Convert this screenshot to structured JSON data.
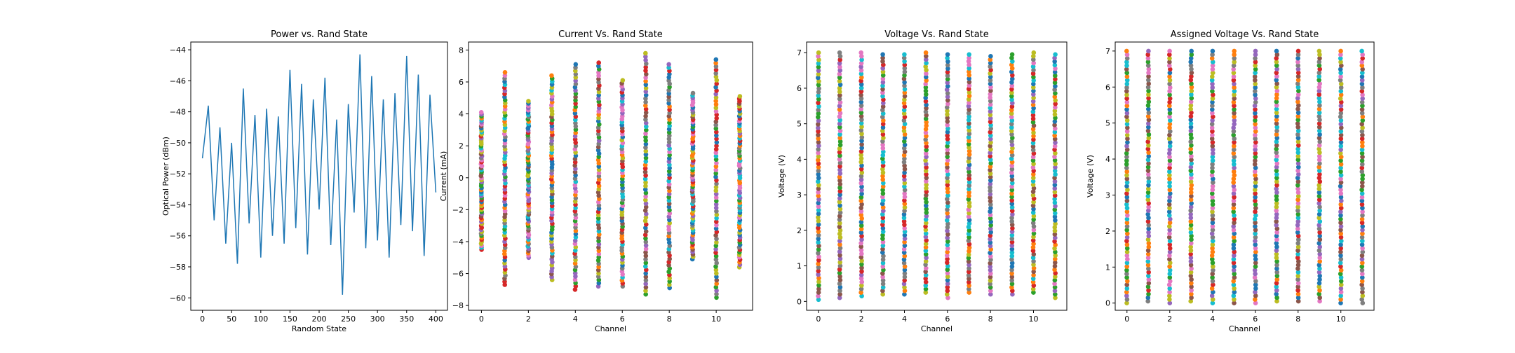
{
  "chart_data": [
    {
      "type": "line",
      "title": "Power vs. Rand State",
      "xlabel": "Random State",
      "ylabel": "Optical Power (dBm)",
      "xlim": [
        -20,
        420
      ],
      "ylim": [
        -60.8,
        -43.5
      ],
      "xticks": [
        0,
        50,
        100,
        150,
        200,
        250,
        300,
        350,
        400
      ],
      "yticks": [
        -60,
        -58,
        -56,
        -54,
        -52,
        -50,
        -48,
        -46,
        -44
      ],
      "series": [
        {
          "color": "#1f77b4",
          "x": [
            0,
            10,
            20,
            30,
            40,
            50,
            60,
            70,
            80,
            90,
            100,
            110,
            120,
            130,
            140,
            150,
            160,
            170,
            180,
            190,
            200,
            210,
            220,
            230,
            240,
            250,
            260,
            270,
            280,
            290,
            300,
            310,
            320,
            330,
            340,
            350,
            360,
            370,
            380,
            390,
            400
          ],
          "y": [
            -51,
            -47.6,
            -55,
            -49,
            -56.5,
            -50,
            -57.8,
            -46.5,
            -55.2,
            -48.2,
            -57.4,
            -47.8,
            -56,
            -48.3,
            -56.5,
            -45.3,
            -55.5,
            -46.2,
            -57.2,
            -47.2,
            -54.3,
            -45.8,
            -56.6,
            -48.5,
            -59.8,
            -47.5,
            -54.5,
            -44.3,
            -56.8,
            -45.7,
            -56.3,
            -47.2,
            -57.4,
            -46.8,
            -55.3,
            -44.4,
            -55.7,
            -45.6,
            -57.3,
            -46.9,
            -53.2
          ]
        }
      ]
    },
    {
      "type": "scatter",
      "title": "Current Vs. Rand State",
      "xlabel": "Channel",
      "ylabel": "Current (mA)",
      "xlim": [
        -0.55,
        11.55
      ],
      "ylim": [
        -8.3,
        8.5
      ],
      "xticks": [
        0,
        2,
        4,
        6,
        8,
        10
      ],
      "yticks": [
        -8,
        -6,
        -4,
        -2,
        0,
        2,
        4,
        6,
        8
      ],
      "channel_ranges": [
        [
          0,
          -4.5,
          4.1
        ],
        [
          1,
          -6.7,
          6.6
        ],
        [
          2,
          -5.0,
          4.8
        ],
        [
          3,
          -6.4,
          6.4
        ],
        [
          4,
          -7.0,
          7.1
        ],
        [
          5,
          -6.8,
          7.2
        ],
        [
          6,
          -6.8,
          6.1
        ],
        [
          7,
          -7.3,
          7.8
        ],
        [
          8,
          -6.9,
          7.1
        ],
        [
          9,
          -5.1,
          5.3
        ],
        [
          10,
          -7.5,
          7.4
        ],
        [
          11,
          -5.6,
          5.1
        ]
      ]
    },
    {
      "type": "scatter",
      "title": "Voltage Vs. Rand State",
      "xlabel": "Channel",
      "ylabel": "Voltage (V)",
      "xlim": [
        -0.55,
        11.55
      ],
      "ylim": [
        -0.25,
        7.3
      ],
      "xticks": [
        0,
        2,
        4,
        6,
        8,
        10
      ],
      "yticks": [
        0,
        1,
        2,
        3,
        4,
        5,
        6,
        7
      ],
      "channel_ranges": [
        [
          0,
          0.05,
          7.0
        ],
        [
          1,
          0.1,
          7.0
        ],
        [
          2,
          0.15,
          7.0
        ],
        [
          3,
          0.2,
          6.95
        ],
        [
          4,
          0.2,
          6.95
        ],
        [
          5,
          0.25,
          7.0
        ],
        [
          6,
          0.1,
          6.95
        ],
        [
          7,
          0.25,
          6.95
        ],
        [
          8,
          0.2,
          6.9
        ],
        [
          9,
          0.2,
          6.95
        ],
        [
          10,
          0.25,
          7.0
        ],
        [
          11,
          0.1,
          6.95
        ]
      ]
    },
    {
      "type": "scatter",
      "title": "Assigned Voltage Vs. Rand State",
      "xlabel": "Channel",
      "ylabel": "Voltage (V)",
      "xlim": [
        -0.55,
        11.55
      ],
      "ylim": [
        -0.2,
        7.25
      ],
      "xticks": [
        0,
        2,
        4,
        6,
        8,
        10
      ],
      "yticks": [
        0,
        1,
        2,
        3,
        4,
        5,
        6,
        7
      ],
      "channel_ranges": [
        [
          0,
          0.0,
          7.0
        ],
        [
          1,
          0.05,
          7.0
        ],
        [
          2,
          0.0,
          7.0
        ],
        [
          3,
          0.05,
          7.0
        ],
        [
          4,
          0.0,
          7.0
        ],
        [
          5,
          0.0,
          7.0
        ],
        [
          6,
          0.0,
          7.0
        ],
        [
          7,
          0.05,
          7.0
        ],
        [
          8,
          0.05,
          7.0
        ],
        [
          9,
          0.05,
          7.0
        ],
        [
          10,
          0.0,
          7.0
        ],
        [
          11,
          0.0,
          7.0
        ]
      ]
    }
  ],
  "scatter_colors": [
    "#1f77b4",
    "#ff7f0e",
    "#2ca02c",
    "#d62728",
    "#9467bd",
    "#8c564b",
    "#e377c2",
    "#7f7f7f",
    "#bcbd22",
    "#17becf"
  ]
}
